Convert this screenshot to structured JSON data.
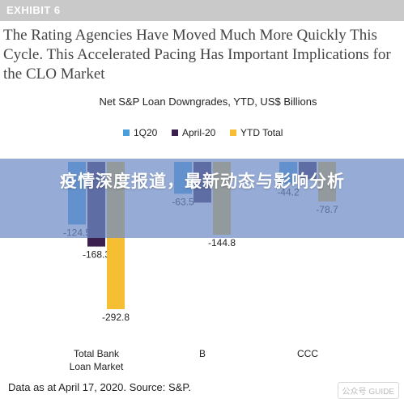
{
  "exhibit": {
    "label": "EXHIBIT 6",
    "title": "The Rating Agencies Have Moved Much More Quickly This Cycle. This Accelerated Pacing Has Important Implications for the CLO Market"
  },
  "overlay": {
    "headline": "疫情深度报道，最新动态与影响分析"
  },
  "source": "Data as at April 17, 2020. Source: S&P.",
  "watermark": "公众号 GUIDE",
  "chart_data": {
    "type": "bar",
    "title": "Net S&P Loan Downgrades, YTD, US$ Billions",
    "categories": [
      "Total Bank\nLoan Market",
      "B",
      "CCC"
    ],
    "series": [
      {
        "name": "1Q20",
        "color": "#4a9fdb",
        "values": [
          -124.5,
          -63.5,
          -44.2
        ]
      },
      {
        "name": "April-20",
        "color": "#3b1f4e",
        "values": [
          -168.3,
          -81.0,
          -34.5
        ]
      },
      {
        "name": "YTD Total",
        "color": "#f5be33",
        "values": [
          -292.8,
          -144.8,
          -78.7
        ]
      }
    ],
    "data_labels": [
      [
        "-124.5",
        "-168.3",
        "-292.8"
      ],
      [
        "-63.5",
        "",
        "-144.8"
      ],
      [
        "-44.2",
        "",
        "-78.7"
      ]
    ],
    "legend_position": "top-center",
    "grid": false,
    "ylim": [
      -300,
      0
    ]
  }
}
